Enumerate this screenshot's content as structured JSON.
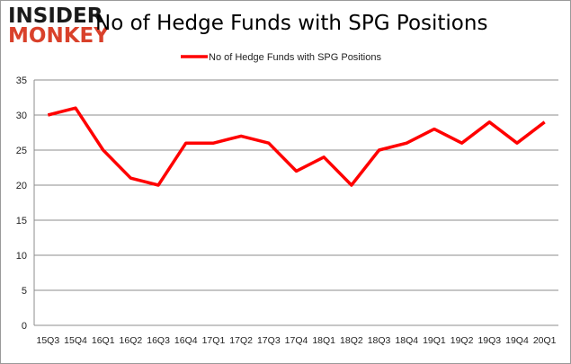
{
  "logo": {
    "line1": "INSIDER",
    "line2": "MONKEY"
  },
  "chart_data": {
    "type": "line",
    "title": "No of Hedge Funds with SPG Positions",
    "categories": [
      "15Q3",
      "15Q4",
      "16Q1",
      "16Q2",
      "16Q3",
      "16Q4",
      "17Q1",
      "17Q2",
      "17Q3",
      "17Q4",
      "18Q1",
      "18Q2",
      "18Q3",
      "18Q4",
      "19Q1",
      "19Q2",
      "19Q3",
      "19Q4",
      "20Q1"
    ],
    "series": [
      {
        "name": "No of Hedge Funds with SPG Positions",
        "values": [
          30,
          31,
          25,
          21,
          20,
          26,
          26,
          27,
          26,
          22,
          24,
          20,
          25,
          26,
          28,
          26,
          29,
          26,
          29
        ],
        "color": "#ff0000"
      }
    ],
    "ylim": [
      0,
      35
    ],
    "yticks": [
      0,
      5,
      10,
      15,
      20,
      25,
      30,
      35
    ],
    "grid": true,
    "legend": "top-center"
  }
}
